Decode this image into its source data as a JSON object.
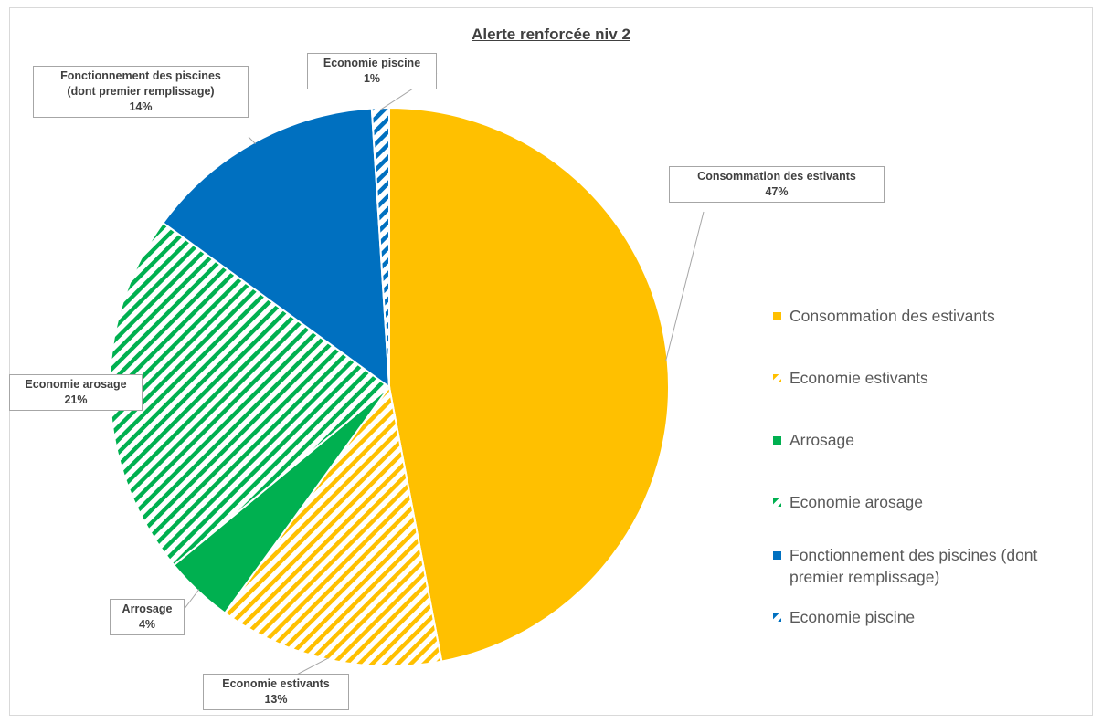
{
  "chart_data": {
    "type": "pie",
    "title": "Alerte renforcée niv 2",
    "slices": [
      {
        "label": "Consommation des estivants",
        "value": 47,
        "value_label": "47%",
        "color": "#FFC000",
        "pattern": "solid"
      },
      {
        "label": "Economie estivants",
        "value": 13,
        "value_label": "13%",
        "color": "#FFC000",
        "pattern": "stripes"
      },
      {
        "label": "Arrosage",
        "value": 4,
        "value_label": "4%",
        "color": "#00B050",
        "pattern": "solid"
      },
      {
        "label": "Economie arosage",
        "value": 21,
        "value_label": "21%",
        "color": "#00B050",
        "pattern": "stripes"
      },
      {
        "label": "Fonctionnement des piscines (dont premier remplissage)",
        "value": 14,
        "value_label": "14%",
        "color": "#0070C0",
        "pattern": "solid"
      },
      {
        "label": "Economie piscine",
        "value": 1,
        "value_label": "1%",
        "color": "#0070C0",
        "pattern": "stripes"
      }
    ],
    "callouts": [
      {
        "line1": "Consommation des estivants",
        "line2": "",
        "pct": "47%"
      },
      {
        "line1": "Economie estivants",
        "line2": "",
        "pct": "13%"
      },
      {
        "line1": "Arrosage",
        "line2": "",
        "pct": "4%"
      },
      {
        "line1": "Economie arosage",
        "line2": "",
        "pct": "21%"
      },
      {
        "line1": "Fonctionnement des piscines",
        "line2": "(dont premier remplissage)",
        "pct": "14%"
      },
      {
        "line1": "Economie piscine",
        "line2": "",
        "pct": "1%"
      }
    ],
    "legend": {
      "position": "right",
      "items": [
        {
          "line1": "Consommation des estivants",
          "line2": ""
        },
        {
          "line1": "Economie estivants",
          "line2": ""
        },
        {
          "line1": "Arrosage",
          "line2": ""
        },
        {
          "line1": "Economie arosage",
          "line2": ""
        },
        {
          "line1": "Fonctionnement des piscines (dont",
          "line2": "premier remplissage)"
        },
        {
          "line1": "Economie piscine",
          "line2": ""
        }
      ]
    }
  }
}
